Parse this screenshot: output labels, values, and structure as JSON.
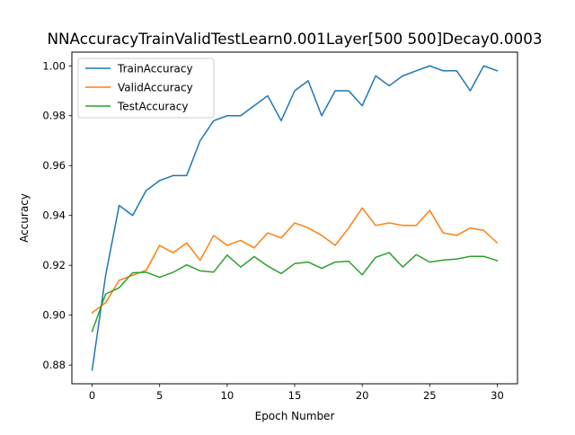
{
  "chart_data": {
    "type": "line",
    "title": "NNAccuracyTrainValidTestLearn0.001Layer[500 500]Decay0.0003",
    "xlabel": "Epoch Number",
    "ylabel": "Accuracy",
    "xlim": [
      -1.5,
      31.5
    ],
    "ylim": [
      0.8725,
      1.0055
    ],
    "x_ticks": [
      0,
      5,
      10,
      15,
      20,
      25,
      30
    ],
    "y_ticks": [
      0.88,
      0.9,
      0.92,
      0.94,
      0.96,
      0.98,
      1.0
    ],
    "y_tick_labels": [
      "0.88",
      "0.90",
      "0.92",
      "0.94",
      "0.96",
      "0.98",
      "1.00"
    ],
    "grid": false,
    "legend_position": "upper-left",
    "x": [
      0,
      1,
      2,
      3,
      4,
      5,
      6,
      7,
      8,
      9,
      10,
      11,
      12,
      13,
      14,
      15,
      16,
      17,
      18,
      19,
      20,
      21,
      22,
      23,
      24,
      25,
      26,
      27,
      28,
      29,
      30
    ],
    "series": [
      {
        "name": "TrainAccuracy",
        "color": "#1f77b4",
        "values": [
          0.878,
          0.916,
          0.944,
          0.94,
          0.95,
          0.954,
          0.956,
          0.956,
          0.97,
          0.978,
          0.98,
          0.98,
          0.984,
          0.988,
          0.978,
          0.99,
          0.994,
          0.98,
          0.99,
          0.99,
          0.984,
          0.996,
          0.992,
          0.996,
          0.998,
          1.0,
          0.998,
          0.998,
          0.99,
          1.0,
          0.998
        ]
      },
      {
        "name": "ValidAccuracy",
        "color": "#ff7f0e",
        "values": [
          0.901,
          0.905,
          0.914,
          0.916,
          0.918,
          0.928,
          0.925,
          0.929,
          0.922,
          0.932,
          0.928,
          0.93,
          0.927,
          0.933,
          0.931,
          0.937,
          0.935,
          0.932,
          0.928,
          0.935,
          0.943,
          0.936,
          0.937,
          0.936,
          0.936,
          0.942,
          0.933,
          0.932,
          0.935,
          0.934,
          0.929
        ]
      },
      {
        "name": "TestAccuracy",
        "color": "#2ca02c",
        "values": [
          0.8935,
          0.9085,
          0.911,
          0.917,
          0.9172,
          0.9152,
          0.9172,
          0.9202,
          0.9178,
          0.9173,
          0.9241,
          0.9193,
          0.9235,
          0.9197,
          0.9167,
          0.9207,
          0.9213,
          0.9188,
          0.9213,
          0.9216,
          0.9162,
          0.9232,
          0.9251,
          0.9193,
          0.9243,
          0.9213,
          0.9221,
          0.9225,
          0.9236,
          0.9236,
          0.9219
        ]
      }
    ]
  }
}
